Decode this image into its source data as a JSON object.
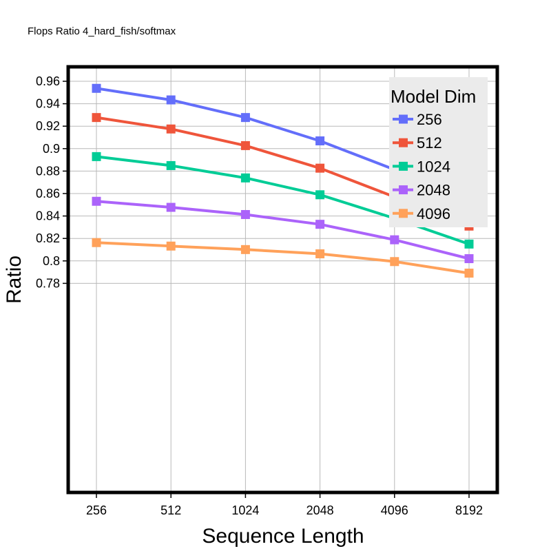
{
  "chart_data": {
    "type": "line",
    "title": "Flops Ratio 4_hard_fish/softmax",
    "xlabel": "Sequence Length",
    "ylabel": "Ratio",
    "categories": [
      "256",
      "512",
      "1024",
      "2048",
      "4096",
      "8192"
    ],
    "ylim": [
      0.775,
      0.965
    ],
    "yticks": [
      0.78,
      0.8,
      0.82,
      0.84,
      0.86,
      0.88,
      0.9,
      0.92,
      0.94,
      0.96
    ],
    "ytick_labels": [
      "0.78",
      "0.8",
      "0.82",
      "0.84",
      "0.86",
      "0.88",
      "0.9",
      "0.92",
      "0.94",
      "0.96"
    ],
    "grid": true,
    "legend": {
      "title": "Model Dim",
      "position": "top-right"
    },
    "series": [
      {
        "name": "256",
        "color": "#636efa",
        "values": [
          0.9537,
          0.9434,
          0.9277,
          0.9069,
          0.8813,
          0.8565
        ]
      },
      {
        "name": "512",
        "color": "#ef553b",
        "values": [
          0.9277,
          0.9175,
          0.9027,
          0.8826,
          0.857,
          0.831
        ]
      },
      {
        "name": "1024",
        "color": "#00cc96",
        "values": [
          0.8929,
          0.8849,
          0.8739,
          0.8589,
          0.8379,
          0.815
        ]
      },
      {
        "name": "2048",
        "color": "#ab63fa",
        "values": [
          0.8531,
          0.8477,
          0.8413,
          0.8326,
          0.8188,
          0.802
        ]
      },
      {
        "name": "4096",
        "color": "#ffa15a",
        "values": [
          0.8163,
          0.8132,
          0.8101,
          0.8063,
          0.7994,
          0.7891
        ]
      }
    ]
  }
}
